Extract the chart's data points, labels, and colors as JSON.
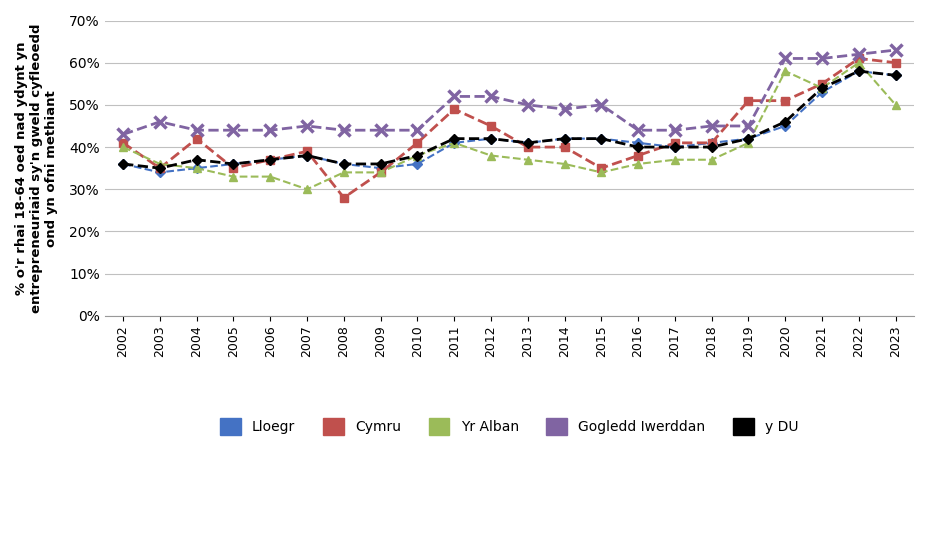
{
  "years": [
    2002,
    2003,
    2004,
    2005,
    2006,
    2007,
    2008,
    2009,
    2010,
    2011,
    2012,
    2013,
    2014,
    2015,
    2016,
    2017,
    2018,
    2019,
    2020,
    2021,
    2022,
    2023
  ],
  "lloegr": [
    0.36,
    0.34,
    0.35,
    0.36,
    0.37,
    0.38,
    0.36,
    0.35,
    0.36,
    0.41,
    0.42,
    0.41,
    0.42,
    0.42,
    0.41,
    0.4,
    0.41,
    0.42,
    0.45,
    0.53,
    0.58,
    0.57
  ],
  "cymru": [
    0.41,
    0.35,
    0.42,
    0.35,
    0.37,
    0.39,
    0.28,
    0.34,
    0.41,
    0.49,
    0.45,
    0.4,
    0.4,
    0.35,
    0.38,
    0.41,
    0.41,
    0.51,
    0.51,
    0.55,
    0.61,
    0.6
  ],
  "yr_alban": [
    0.4,
    0.36,
    0.35,
    0.33,
    0.33,
    0.3,
    0.34,
    0.34,
    0.38,
    0.41,
    0.38,
    0.37,
    0.36,
    0.34,
    0.36,
    0.37,
    0.37,
    0.41,
    0.58,
    0.54,
    0.6,
    0.5
  ],
  "gogledd_iwerddan": [
    0.43,
    0.46,
    0.44,
    0.44,
    0.44,
    0.45,
    0.44,
    0.44,
    0.44,
    0.52,
    0.52,
    0.5,
    0.49,
    0.5,
    0.44,
    0.44,
    0.45,
    0.45,
    0.61,
    0.61,
    0.62,
    0.63
  ],
  "y_du": [
    0.36,
    0.35,
    0.37,
    0.36,
    0.37,
    0.38,
    0.36,
    0.36,
    0.38,
    0.42,
    0.42,
    0.41,
    0.42,
    0.42,
    0.4,
    0.4,
    0.4,
    0.42,
    0.46,
    0.54,
    0.58,
    0.57
  ],
  "lloegr_color": "#4472C4",
  "cymru_color": "#C0504D",
  "yr_alban_color": "#9BBB59",
  "gogledd_iwerddan_color": "#8064A2",
  "y_du_color": "#000000",
  "ylabel_line1": "% o'r rhai 18-64 oed nad ydynt yn",
  "ylabel_line2": "entrepreneuriaid sy'n gweld cyfleoedd",
  "ylabel_line3": "ond yn ofni methiant",
  "ylim": [
    0.0,
    0.7
  ],
  "yticks": [
    0.0,
    0.1,
    0.2,
    0.3,
    0.4,
    0.5,
    0.6,
    0.7
  ],
  "legend_labels": [
    "Lloegr",
    "Cymru",
    "Yr Alban",
    "Gogledd Iwerddan",
    "y DU"
  ],
  "background_color": "#ffffff"
}
